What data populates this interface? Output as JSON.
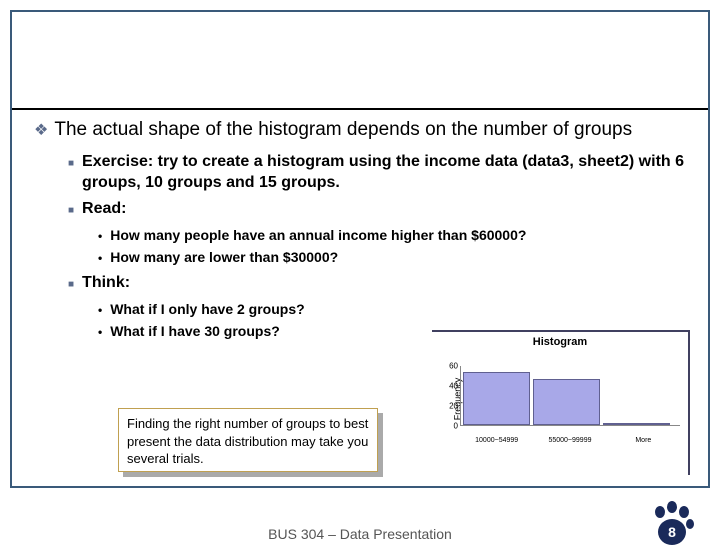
{
  "main": {
    "text": "The actual shape of the histogram depends on the number of groups"
  },
  "items": [
    {
      "text": "Exercise: try to create a histogram using the income data (data3, sheet2) with 6 groups, 10 groups and 15 groups."
    },
    {
      "text": "Read:"
    }
  ],
  "read_sub": [
    {
      "text": "How many people have an annual income higher than $60000?"
    },
    {
      "text": "How many are lower than $30000?"
    }
  ],
  "think_label": "Think:",
  "think_sub": [
    {
      "text": "What if I only have 2 groups?"
    },
    {
      "text": "What if I have 30 groups?"
    }
  ],
  "callout": "Finding the right number of groups to best present the data distribution may take you several trials.",
  "chart": {
    "title": "Histogram",
    "ylabel": "Frequency",
    "yticks": [
      60,
      40,
      20,
      0
    ],
    "ymax": 60,
    "categories": [
      "10000~54999",
      "55000~99999",
      "More"
    ],
    "values": [
      53,
      46,
      1
    ],
    "bar_color": "#a8a8e8",
    "bar_border": "#606090"
  },
  "footer": "BUS 304 – Data Presentation",
  "page_number": "8",
  "colors": {
    "border": "#3a5a7a",
    "bullet_marker": "#5a6a8a",
    "paw": "#1a2a5a"
  }
}
